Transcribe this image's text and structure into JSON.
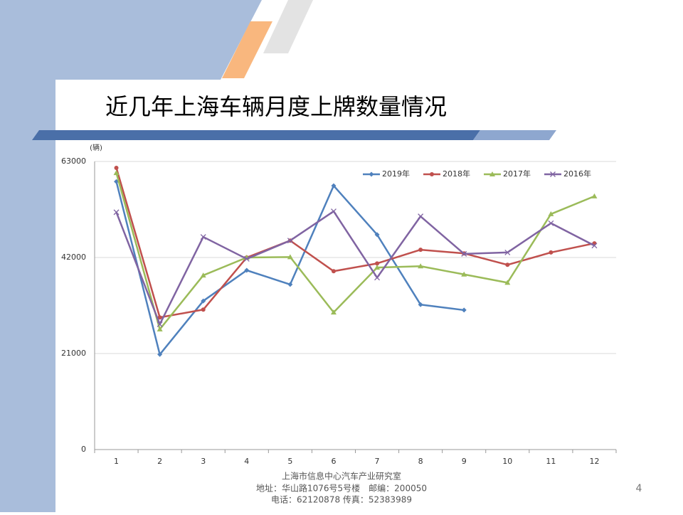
{
  "title": "近几年上海车辆月度上牌数量情况",
  "chart_data": {
    "type": "line",
    "y_label": "(辆)",
    "categories": [
      "1",
      "2",
      "3",
      "4",
      "5",
      "6",
      "7",
      "8",
      "9",
      "10",
      "11",
      "12"
    ],
    "series": [
      {
        "name": "2019年",
        "color": "#4f81bd",
        "marker": "diamond",
        "values": [
          58600,
          20800,
          32500,
          39200,
          36100,
          57700,
          47000,
          31700,
          30500,
          null,
          null,
          null
        ]
      },
      {
        "name": "2018年",
        "color": "#c0504d",
        "marker": "circle",
        "values": [
          61600,
          28900,
          30600,
          42000,
          45700,
          39000,
          40700,
          43700,
          42900,
          40400,
          43100,
          45100
        ]
      },
      {
        "name": "2017年",
        "color": "#9bbb59",
        "marker": "triangle",
        "values": [
          60500,
          26300,
          38100,
          42000,
          42100,
          30000,
          39800,
          40100,
          38300,
          36500,
          51500,
          55400
        ]
      },
      {
        "name": "2016年",
        "color": "#8064a2",
        "marker": "x",
        "values": [
          51900,
          27400,
          46500,
          41700,
          45700,
          52100,
          37600,
          51000,
          42800,
          43100,
          49500,
          44600
        ]
      }
    ],
    "ylim": [
      0,
      63000
    ],
    "yticks": [
      0,
      21000,
      42000,
      63000
    ],
    "grid": true,
    "legend": "top-right"
  },
  "footer": [
    "上海市信息中心汽车产业研究室",
    "地址：华山路1076号5号楼　邮编：200050",
    "电话：62120878  传真：52383989"
  ],
  "page_number": "4"
}
